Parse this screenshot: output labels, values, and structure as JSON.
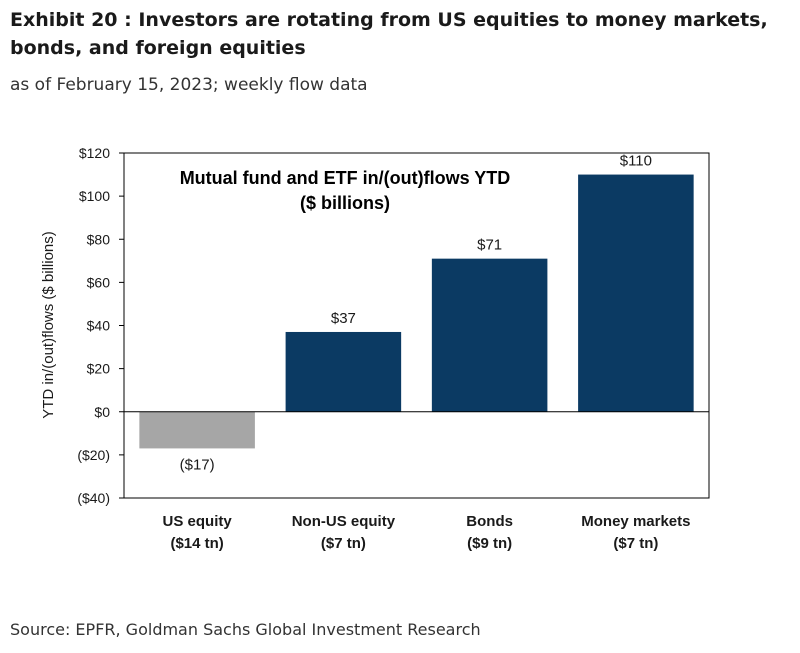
{
  "header": {
    "title": "Exhibit 20 : Investors are rotating from US equities to money markets, bonds, and foreign equities",
    "subtitle": "as of February 15, 2023; weekly flow data"
  },
  "footer": {
    "source": "Source: EPFR, Goldman Sachs Global Investment Research"
  },
  "chart_data": {
    "type": "bar",
    "title": "Mutual fund and ETF in/(out)flows YTD",
    "subtitle": "($ billions)",
    "ylabel": "YTD in/(out)flows  ($ billions)",
    "xlabel": "",
    "ylim": [
      -40,
      120
    ],
    "yticks": [
      -40,
      -20,
      0,
      20,
      40,
      60,
      80,
      100,
      120
    ],
    "ytick_labels": [
      "($40)",
      "($20)",
      "$0",
      "$20",
      "$40",
      "$60",
      "$80",
      "$100",
      "$120"
    ],
    "categories": [
      "US equity",
      "Non-US equity",
      "Bonds",
      "Money markets"
    ],
    "category_sublabels": [
      "($14 tn)",
      "($7 tn)",
      "($9 tn)",
      "($7 tn)"
    ],
    "values": [
      -17,
      37,
      71,
      110
    ],
    "data_labels": [
      "($17)",
      "$37",
      "$71",
      "$110"
    ],
    "colors": [
      "#a6a6a6",
      "#0b3a63",
      "#0b3a63",
      "#0b3a63"
    ],
    "grid": false,
    "legend": "none"
  }
}
